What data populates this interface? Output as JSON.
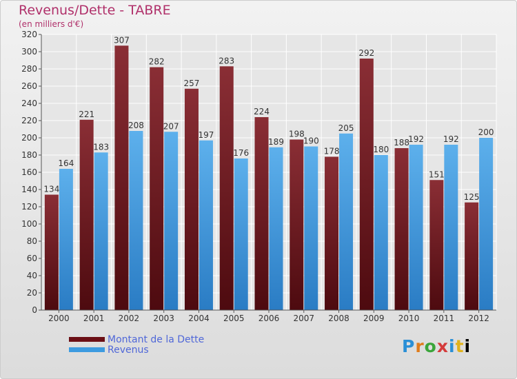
{
  "chart_data": {
    "type": "bar",
    "title": "Revenus/Dette - TABRE",
    "subtitle": "(en milliers d'€)",
    "categories": [
      "2000",
      "2001",
      "2002",
      "2003",
      "2004",
      "2005",
      "2006",
      "2007",
      "2008",
      "2009",
      "2010",
      "2011",
      "2012"
    ],
    "series": [
      {
        "name": "Montant de la Dette",
        "color": "#7a1f26",
        "values": [
          134,
          221,
          307,
          282,
          257,
          283,
          224,
          198,
          178,
          292,
          188,
          151,
          125
        ]
      },
      {
        "name": "Revenus",
        "color": "#3d9be0",
        "values": [
          164,
          183,
          208,
          207,
          197,
          176,
          189,
          190,
          205,
          180,
          192,
          192,
          200
        ]
      }
    ],
    "ylim": [
      0,
      320
    ],
    "yticks": [
      0,
      20,
      40,
      60,
      80,
      100,
      120,
      140,
      160,
      180,
      200,
      220,
      240,
      260,
      280,
      300,
      320
    ],
    "grid": true,
    "legend_position": "bottom-left"
  },
  "logo_letters": [
    "P",
    "r",
    "o",
    "x",
    "i",
    "t",
    "i"
  ]
}
